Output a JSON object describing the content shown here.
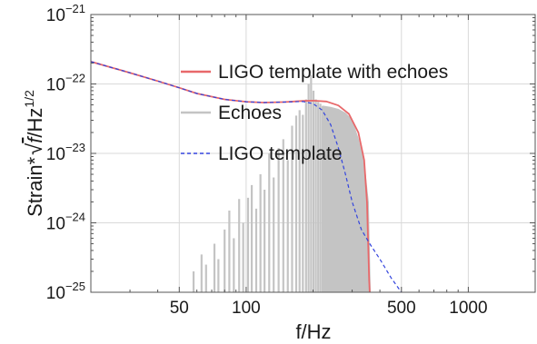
{
  "chart_data": {
    "type": "line",
    "title": "",
    "xlabel": "f/Hz",
    "ylabel_parts": {
      "prefix": "Strain",
      "star": "*",
      "var": "f",
      "suffix": "/Hz",
      "exp": "1/2"
    },
    "x_scale": "log",
    "y_scale": "log",
    "xlim": [
      20,
      2000
    ],
    "ylim": [
      1e-25,
      1e-21
    ],
    "grid": true,
    "legend_position": "upper-left inside plot",
    "x_ticks": [
      {
        "value": 50,
        "label": "50"
      },
      {
        "value": 100,
        "label": "100"
      },
      {
        "value": 500,
        "label": "500"
      },
      {
        "value": 1000,
        "label": "1000"
      }
    ],
    "y_ticks": [
      {
        "value": 1e-25,
        "base": "10",
        "exp": "−25"
      },
      {
        "value": 1e-24,
        "base": "10",
        "exp": "−24"
      },
      {
        "value": 1e-23,
        "base": "10",
        "exp": "−23"
      },
      {
        "value": 1e-22,
        "base": "10",
        "exp": "−22"
      },
      {
        "value": 1e-21,
        "base": "10",
        "exp": "−21"
      }
    ],
    "series": [
      {
        "name": "LIGO template with echoes",
        "color": "#e8686a",
        "style": "solid",
        "x": [
          20,
          30,
          40,
          50,
          60,
          80,
          100,
          120,
          150,
          180,
          200,
          230,
          260,
          290,
          320,
          340,
          350,
          355,
          358,
          360,
          362
        ],
        "y": [
          2.1e-22,
          1.45e-22,
          1.1e-22,
          8.8e-23,
          7.3e-23,
          6e-23,
          5.55e-23,
          5.4e-23,
          5.5e-23,
          5.7e-23,
          5.75e-23,
          5.6e-23,
          4.9e-23,
          3.7e-23,
          2e-23,
          8e-24,
          2e-24,
          4e-25,
          1.5e-25,
          1e-25,
          5e-26
        ]
      },
      {
        "name": "Echoes",
        "color": "#c4c4c4",
        "style": "spikes",
        "spikes": [
          [
            58,
            2e-25
          ],
          [
            63,
            3.5e-25
          ],
          [
            66,
            2.5e-25
          ],
          [
            72,
            5e-25
          ],
          [
            75,
            3e-25
          ],
          [
            80,
            8e-25
          ],
          [
            84,
            1.5e-24
          ],
          [
            88,
            6e-25
          ],
          [
            93,
            2.2e-24
          ],
          [
            97,
            1e-24
          ],
          [
            102,
            2.3e-24
          ],
          [
            106,
            3.5e-24
          ],
          [
            111,
            1.6e-24
          ],
          [
            116,
            5e-24
          ],
          [
            121,
            3e-24
          ],
          [
            127,
            1e-23
          ],
          [
            133,
            4.5e-24
          ],
          [
            140,
            1.2e-23
          ],
          [
            147,
            1.6e-23
          ],
          [
            154,
            8e-24
          ],
          [
            161,
            2.5e-23
          ],
          [
            168,
            3.5e-23
          ],
          [
            174,
            4.2e-23
          ],
          [
            180,
            3.6e-23
          ],
          [
            186,
            6e-23
          ],
          [
            191,
            1e-22
          ],
          [
            196,
            1.35e-22
          ],
          [
            201,
            8e-23
          ],
          [
            206,
            6e-23
          ],
          [
            211,
            5.5e-23
          ],
          [
            216,
            5.2e-23
          ],
          [
            221,
            4.8e-23
          ]
        ],
        "band_x": [
          221,
          240,
          260,
          280,
          300,
          320,
          340,
          355,
          362
        ],
        "band_low": [
          1e-25,
          1e-25,
          1e-25,
          1e-25,
          1e-25,
          1e-25,
          1e-25,
          1e-25,
          1e-25
        ],
        "band_high": [
          4.8e-23,
          4.6e-23,
          4.3e-23,
          3.8e-23,
          3e-23,
          1.6e-23,
          7e-24,
          2e-24,
          1e-25
        ]
      },
      {
        "name": "LIGO template",
        "color": "#3344dd",
        "style": "dashed",
        "x": [
          20,
          30,
          40,
          50,
          60,
          80,
          100,
          120,
          150,
          180,
          200,
          220,
          240,
          260,
          280,
          300,
          330,
          360,
          400,
          450,
          500
        ],
        "y": [
          2.1e-22,
          1.45e-22,
          1.1e-22,
          8.8e-23,
          7.3e-23,
          6e-23,
          5.55e-23,
          5.4e-23,
          5.5e-23,
          5.6e-23,
          5.2e-23,
          4.2e-23,
          2.6e-23,
          1.2e-23,
          5e-24,
          2e-24,
          8e-25,
          5e-25,
          3e-25,
          1.6e-25,
          1e-25
        ]
      }
    ]
  }
}
